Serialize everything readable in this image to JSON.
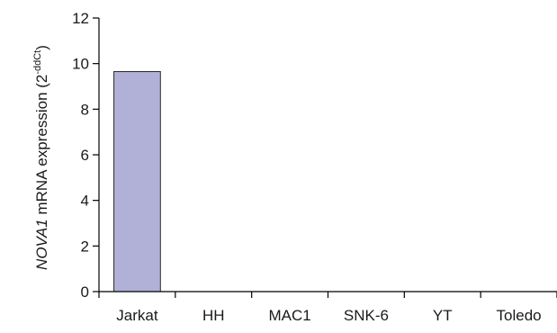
{
  "chart_data": {
    "type": "bar",
    "categories": [
      "Jarkat",
      "HH",
      "MAC1",
      "SNK-6",
      "YT",
      "Toledo"
    ],
    "values": [
      9.65,
      0,
      0,
      0,
      0,
      0
    ],
    "ylim": [
      0,
      12
    ],
    "yticks": [
      0,
      2,
      4,
      6,
      8,
      10,
      12
    ],
    "ylabel": {
      "italic": "NOVA1",
      "main": " mRNA expression (2",
      "superscript": "-ddCt",
      "close": ")"
    },
    "xlabel": "",
    "grid": false,
    "legend": "none",
    "bar_color": "#b1b0d6",
    "bar_edge_color": "#2a2a2a",
    "axis_color": "#000000"
  }
}
